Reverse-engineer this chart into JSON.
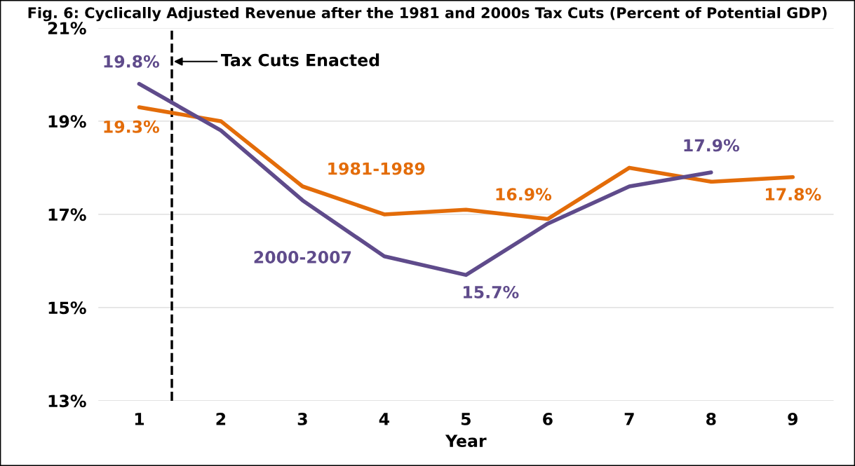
{
  "chart_data": {
    "type": "line",
    "title": "Fig. 6: Cyclically Adjusted Revenue after the 1981 and 2000s Tax Cuts (Percent of Potential GDP)",
    "xlabel": "Year",
    "x": [
      1,
      2,
      3,
      4,
      5,
      6,
      7,
      8,
      9
    ],
    "xlim": [
      0.5,
      9.5
    ],
    "xticks": [
      1,
      2,
      3,
      4,
      5,
      6,
      7,
      8,
      9
    ],
    "ylim": [
      13,
      21
    ],
    "yticks": [
      {
        "value": 13,
        "label": "13%"
      },
      {
        "value": 15,
        "label": "15%"
      },
      {
        "value": 17,
        "label": "17%"
      },
      {
        "value": 19,
        "label": "19%"
      },
      {
        "value": 21,
        "label": "21%"
      }
    ],
    "series": [
      {
        "name": "1981-1989",
        "color": "#e36c09",
        "values": [
          19.3,
          19.0,
          17.6,
          17.0,
          17.1,
          16.9,
          18.0,
          17.7,
          17.8
        ]
      },
      {
        "name": "2000-2007",
        "color": "#5f4b8b",
        "values": [
          19.8,
          18.8,
          17.3,
          16.1,
          15.7,
          16.8,
          17.6,
          17.9,
          null
        ]
      }
    ],
    "annotations": [
      {
        "text": "19.8%",
        "x": 1,
        "y": 19.8
      },
      {
        "text": "19.3%",
        "x": 1,
        "y": 19.3
      },
      {
        "text": "15.7%",
        "x": 5,
        "y": 15.7
      },
      {
        "text": "16.9%",
        "x": 6,
        "y": 16.9
      },
      {
        "text": "17.9%",
        "x": 8,
        "y": 17.9
      },
      {
        "text": "17.8%",
        "x": 9,
        "y": 17.8
      }
    ],
    "ref_lines": [
      {
        "axis": "x",
        "value": 1.4,
        "label": "Tax Cuts Enacted",
        "color": "#000000",
        "line_style": "dashed"
      }
    ],
    "grid": "y",
    "legend": false,
    "marker": "none",
    "line_style": "solid"
  }
}
